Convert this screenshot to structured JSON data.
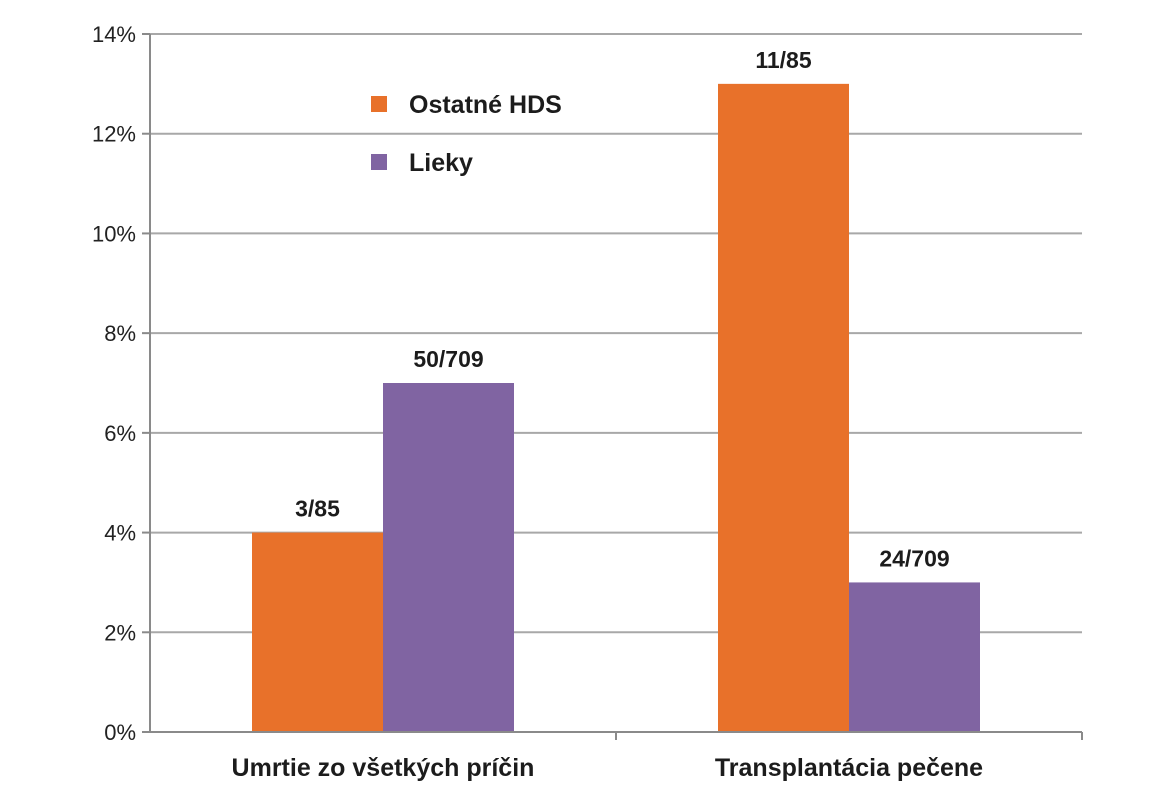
{
  "chart_data": {
    "type": "bar",
    "title": "",
    "xlabel": "",
    "ylabel": "",
    "categories": [
      "Umrtie zo všetkých príčin",
      "Transplantácia pečene"
    ],
    "series": [
      {
        "name": "Ostatné HDS",
        "color": "#e8712a",
        "values": [
          4,
          13
        ],
        "labels": [
          "3/85",
          "11/85"
        ]
      },
      {
        "name": "Lieky",
        "color": "#8064a2",
        "values": [
          7,
          3
        ],
        "labels": [
          "50/709",
          "24/709"
        ]
      }
    ],
    "ylim": [
      0,
      14
    ],
    "yticks": [
      0,
      2,
      4,
      6,
      8,
      10,
      12,
      14
    ],
    "ytick_labels": [
      "0%",
      "2%",
      "4%",
      "6%",
      "8%",
      "10%",
      "12%",
      "14%"
    ],
    "y_unit": "%",
    "grid": true,
    "legend_position": "top-left"
  }
}
